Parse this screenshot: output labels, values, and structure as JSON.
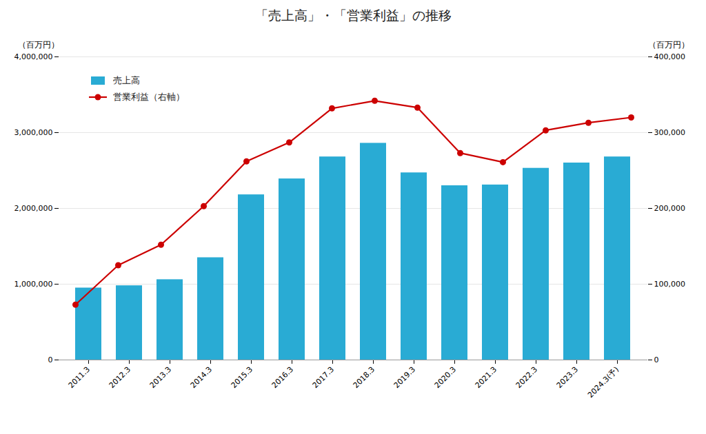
{
  "chart_data": {
    "type": "bar",
    "title": "「売上高」・「営業利益」の推移",
    "ylabel": "（百万円）",
    "y2label": "（百万円）",
    "categories": [
      "2011.3",
      "2012.3",
      "2013.3",
      "2014.3",
      "2015.3",
      "2016.3",
      "2017.3",
      "2018.3",
      "2019.3",
      "2020.3",
      "2021.3",
      "2022.3",
      "2023.3",
      "2024.3(予)"
    ],
    "series": [
      {
        "name": "売上高",
        "type": "bar",
        "color": "#29ABD4",
        "values": [
          950000,
          980000,
          1060000,
          1350000,
          2180000,
          2390000,
          2680000,
          2860000,
          2470000,
          2300000,
          2310000,
          2530000,
          2600000,
          2680000
        ]
      },
      {
        "name": "営業利益（右軸）",
        "type": "line",
        "color": "#CC0000",
        "marker": "circle",
        "line_style": "solid",
        "axis": "y2",
        "values": [
          73000,
          125000,
          152000,
          203000,
          262000,
          287000,
          332000,
          342000,
          333000,
          273000,
          261000,
          303000,
          313000,
          320000
        ]
      }
    ],
    "ylim": [
      0,
      4000000
    ],
    "yticks": [
      0,
      {
        "value": 1000000,
        "label": "1,000,000"
      },
      {
        "value": 2000000,
        "label": "2,000,000"
      },
      {
        "value": 3000000,
        "label": "3,000,000"
      },
      {
        "value": 4000000,
        "label": "4,000,000"
      }
    ],
    "y2lim": [
      0,
      400000
    ],
    "y2ticks": [
      0,
      {
        "value": 100000,
        "label": "100,000"
      },
      {
        "value": 200000,
        "label": "200,000"
      },
      {
        "value": 300000,
        "label": "300,000"
      },
      {
        "value": 400000,
        "label": "400,000"
      }
    ],
    "grid": true,
    "legend": "upper left"
  }
}
